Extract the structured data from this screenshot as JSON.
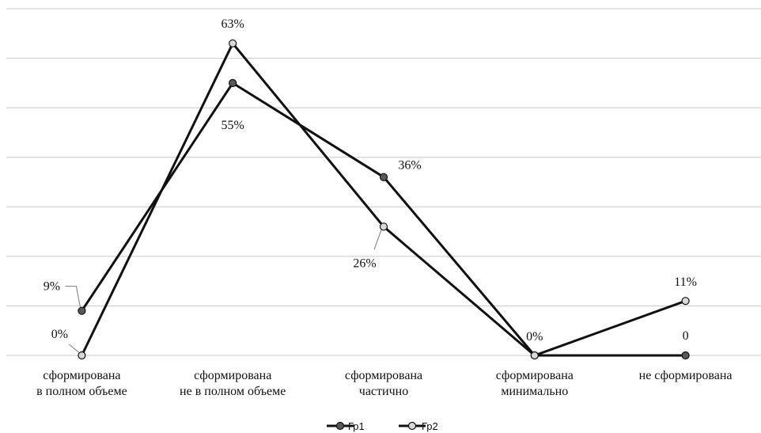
{
  "chart_data": {
    "type": "line",
    "categories": [
      [
        "сформирована",
        "в полном объеме"
      ],
      [
        "сформирована",
        "не в полном объеме"
      ],
      [
        "сформирована",
        "частично"
      ],
      [
        "сформирована",
        "минимально"
      ],
      [
        "не сформирована"
      ]
    ],
    "series": [
      {
        "name": "Гр1",
        "values": [
          9,
          55,
          36,
          0,
          0
        ],
        "labels": [
          "9%",
          "55%",
          "36%",
          "0%",
          "0"
        ],
        "marker_color": "#595959"
      },
      {
        "name": "Гр2",
        "values": [
          0,
          63,
          26,
          0,
          11
        ],
        "labels": [
          "0%",
          "63%",
          "26%",
          "",
          "11%"
        ],
        "marker_color": "#d9d9d9"
      }
    ],
    "ylim": [
      0,
      70
    ],
    "grid": true,
    "legend_position": "bottom",
    "line_color": "#111111"
  }
}
